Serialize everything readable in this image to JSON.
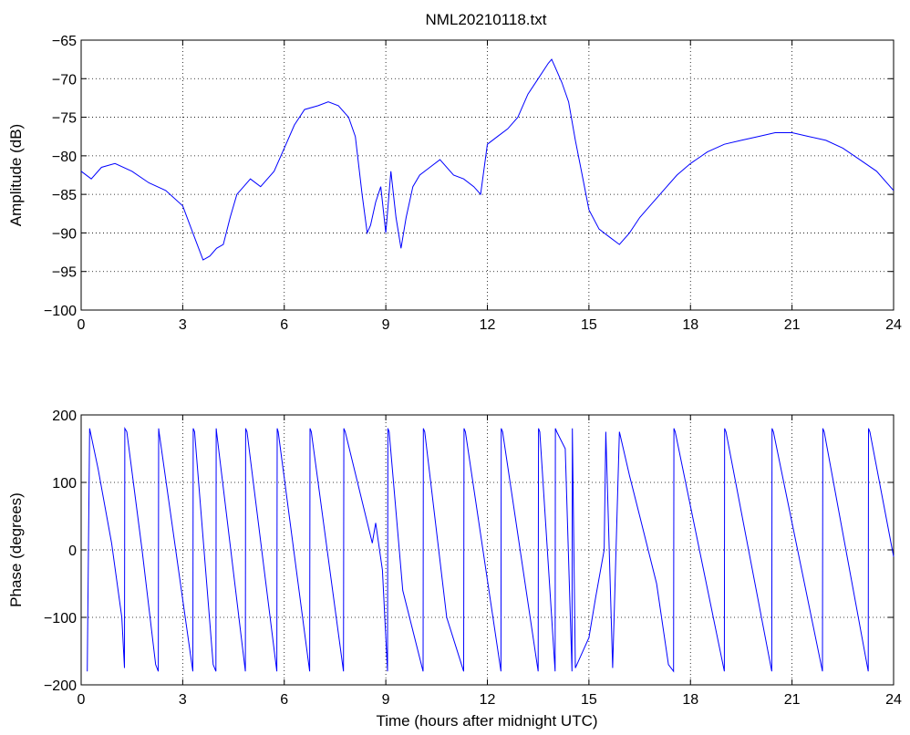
{
  "chart_data": [
    {
      "type": "line",
      "title": "NML20210118.txt",
      "xlabel": "",
      "ylabel": "Amplitude (dB)",
      "xlim": [
        0,
        24
      ],
      "ylim": [
        -100,
        -65
      ],
      "xticks": [
        0,
        3,
        6,
        9,
        12,
        15,
        18,
        21,
        24
      ],
      "yticks": [
        -100,
        -95,
        -90,
        -85,
        -80,
        -75,
        -70,
        -65
      ],
      "grid": true,
      "color": "#0000ff",
      "series": [
        {
          "x": [
            0,
            0.3,
            0.6,
            1.0,
            1.5,
            2.0,
            2.5,
            3.0,
            3.3,
            3.6,
            3.8,
            4.0,
            4.2,
            4.4,
            4.6,
            4.8,
            5.0,
            5.3,
            5.7,
            6.0,
            6.3,
            6.6,
            7.0,
            7.3,
            7.6,
            7.9,
            8.1,
            8.3,
            8.45,
            8.55,
            8.7,
            8.85,
            9.0,
            9.15,
            9.3,
            9.45,
            9.6,
            9.8,
            10.0,
            10.3,
            10.6,
            11.0,
            11.3,
            11.6,
            11.8,
            12.0,
            12.3,
            12.6,
            12.9,
            13.2,
            13.5,
            13.8,
            13.9,
            14.0,
            14.2,
            14.4,
            14.6,
            14.8,
            15.0,
            15.3,
            15.6,
            15.9,
            16.2,
            16.5,
            16.8,
            17.2,
            17.6,
            18.0,
            18.5,
            19.0,
            19.5,
            20.0,
            20.5,
            21.0,
            21.5,
            22.0,
            22.5,
            23.0,
            23.5,
            24.0
          ],
          "y": [
            -82,
            -83,
            -81.5,
            -81,
            -82,
            -83.5,
            -84.5,
            -86.5,
            -90,
            -93.5,
            -93,
            -92,
            -91.5,
            -88,
            -85,
            -84,
            -83,
            -84,
            -82,
            -79,
            -76,
            -74,
            -73.5,
            -73,
            -73.5,
            -75,
            -77.5,
            -85,
            -90,
            -89,
            -86,
            -84,
            -90,
            -82,
            -88,
            -92,
            -88,
            -84,
            -82.5,
            -81.5,
            -80.5,
            -82.5,
            -83,
            -84,
            -85,
            -78.5,
            -77.5,
            -76.5,
            -75,
            -72,
            -70,
            -68,
            -67.5,
            -68.5,
            -70.5,
            -73,
            -78,
            -82.5,
            -87,
            -89.5,
            -90.5,
            -91.5,
            -90,
            -88,
            -86.5,
            -84.5,
            -82.5,
            -81,
            -79.5,
            -78.5,
            -78,
            -77.5,
            -77,
            -77,
            -77.5,
            -78,
            -79,
            -80.5,
            -82,
            -84.5
          ]
        }
      ]
    },
    {
      "type": "line",
      "title": "",
      "xlabel": "Time (hours after midnight UTC)",
      "ylabel": "Phase (degrees)",
      "xlim": [
        0,
        24
      ],
      "ylim": [
        -200,
        200
      ],
      "xticks": [
        0,
        3,
        6,
        9,
        12,
        15,
        18,
        21,
        24
      ],
      "yticks": [
        -200,
        -100,
        0,
        100,
        200
      ],
      "grid": true,
      "color": "#0000ff",
      "series": [
        {
          "x": [
            0.18,
            0.25,
            0.5,
            0.9,
            1.2,
            1.28,
            1.29,
            1.35,
            1.8,
            2.2,
            2.28,
            2.29,
            2.3,
            3.3,
            3.31,
            3.35,
            3.9,
            3.98,
            3.99,
            4.0,
            4.85,
            4.86,
            4.9,
            5.78,
            5.79,
            5.82,
            6.75,
            6.76,
            6.8,
            7.75,
            7.76,
            7.8,
            8.6,
            8.7,
            8.9,
            9.05,
            9.06,
            9.1,
            9.5,
            10.1,
            10.11,
            10.15,
            10.8,
            11.3,
            11.31,
            11.35,
            12.4,
            12.41,
            12.45,
            13.5,
            13.51,
            13.55,
            14.0,
            14.01,
            14.05,
            14.3,
            14.5,
            14.51,
            14.6,
            15.0,
            15.2,
            15.45,
            15.5,
            15.7,
            15.9,
            16.2,
            16.5,
            17.0,
            17.35,
            17.5,
            17.51,
            17.55,
            19.0,
            19.01,
            19.05,
            20.4,
            20.41,
            20.45,
            21.9,
            21.91,
            21.95,
            23.25,
            23.26,
            23.3,
            24.0
          ],
          "y": [
            -180,
            180,
            120,
            10,
            -100,
            -175,
            180,
            175,
            0,
            -170,
            -180,
            180,
            175,
            -180,
            180,
            175,
            -170,
            -180,
            180,
            175,
            -180,
            180,
            175,
            -180,
            180,
            175,
            -180,
            180,
            175,
            -180,
            180,
            175,
            10,
            40,
            -30,
            -180,
            180,
            175,
            -60,
            -180,
            180,
            175,
            -100,
            -180,
            180,
            175,
            -180,
            180,
            175,
            -180,
            180,
            175,
            -180,
            180,
            175,
            150,
            -180,
            180,
            -175,
            -130,
            -70,
            0,
            175,
            -175,
            175,
            110,
            50,
            -50,
            -170,
            -180,
            180,
            175,
            -180,
            180,
            175,
            -180,
            180,
            175,
            -180,
            180,
            175,
            -180,
            180,
            175,
            -10
          ]
        }
      ]
    }
  ]
}
